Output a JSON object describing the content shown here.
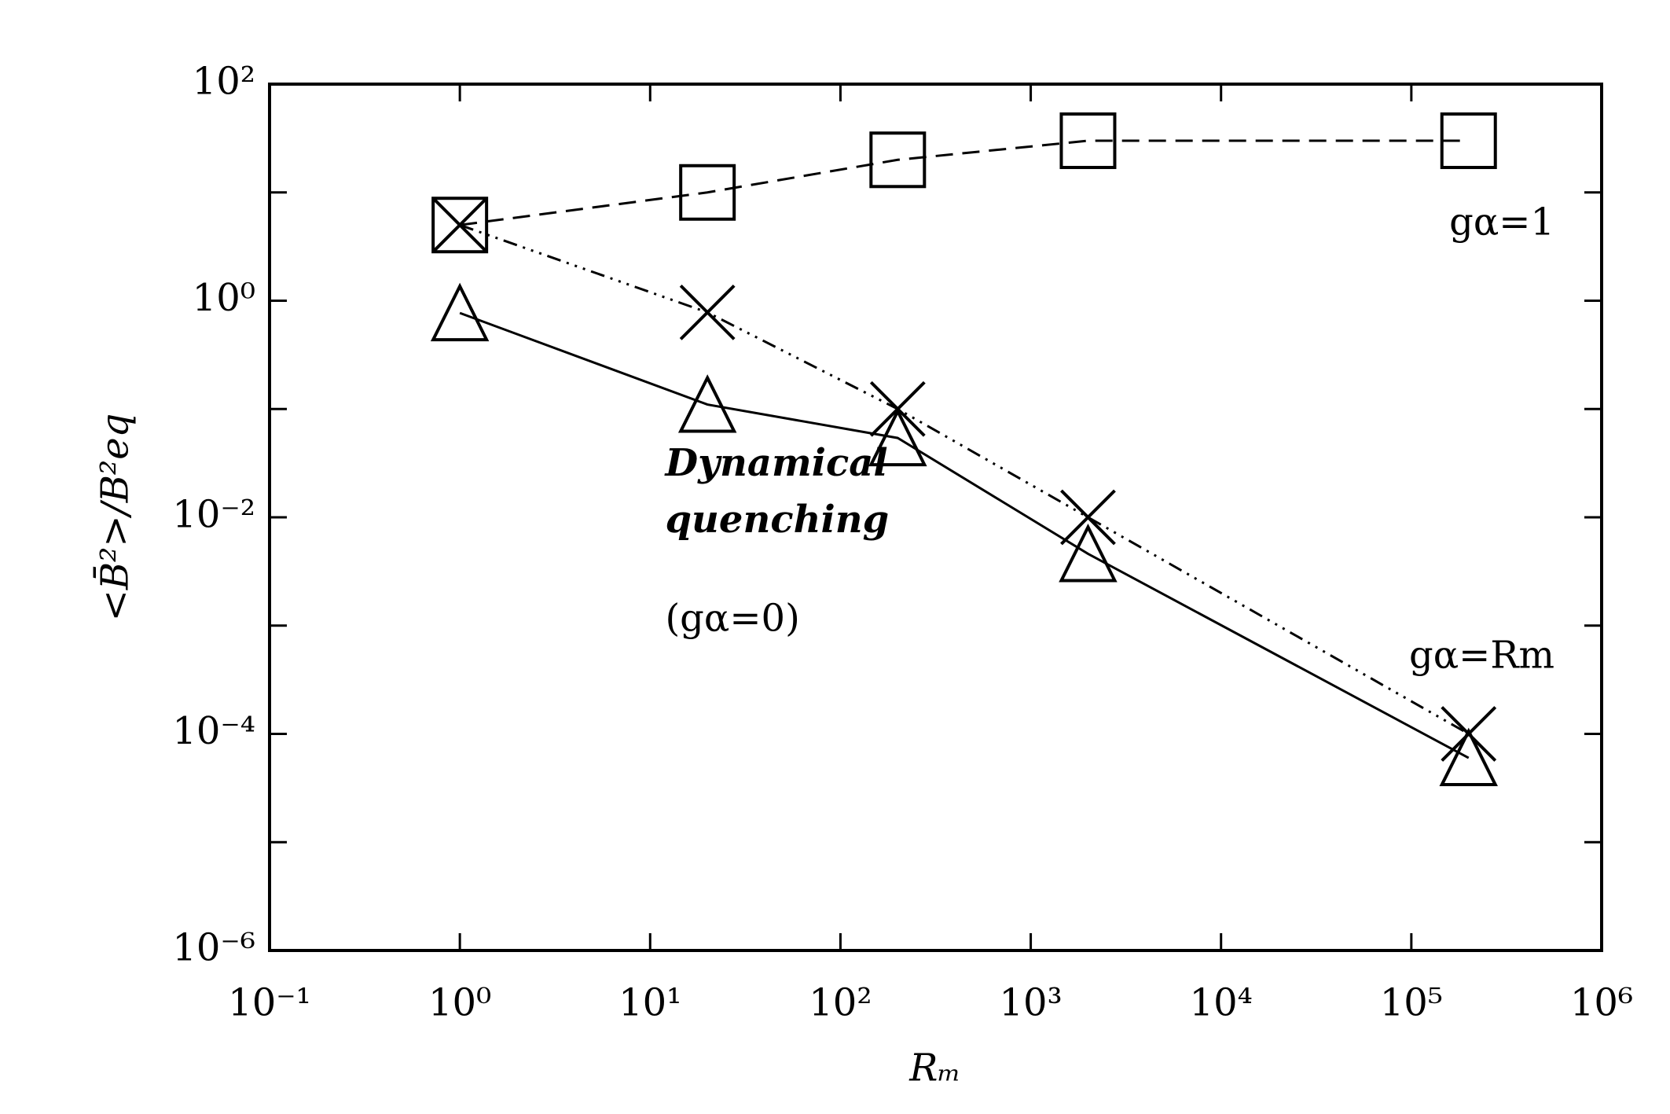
{
  "chart_data": {
    "type": "line",
    "x_label": "Rₘ",
    "y_label": "<B̄²>/B²eq",
    "x": [
      1,
      20,
      200,
      2000,
      200000
    ],
    "series": [
      {
        "marker": "square",
        "dash": "dashed",
        "color": "#000000",
        "values": [
          5,
          10,
          20,
          30,
          30
        ]
      },
      {
        "marker": "cross",
        "dash": "dash-dot",
        "color": "#000000",
        "values": [
          5,
          0.78,
          0.1,
          0.01,
          0.0001
        ]
      },
      {
        "marker": "triangle",
        "dash": "solid",
        "color": "#000000",
        "values": [
          0.77,
          0.11,
          0.054,
          0.0046,
          6e-05
        ]
      }
    ],
    "xlog": true,
    "ylog": true,
    "xlim": [
      0.1,
      1000000
    ],
    "ylim": [
      1e-06,
      100
    ],
    "xticks": [
      {
        "value": 0.1,
        "label": "10⁻¹"
      },
      {
        "value": 1,
        "label": "10⁰"
      },
      {
        "value": 10,
        "label": "10¹"
      },
      {
        "value": 100,
        "label": "10²"
      },
      {
        "value": 1000,
        "label": "10³"
      },
      {
        "value": 10000,
        "label": "10⁴"
      },
      {
        "value": 100000,
        "label": "10⁵"
      },
      {
        "value": 1000000,
        "label": "10⁶"
      }
    ],
    "yticks": [
      {
        "value": 1e-06,
        "label": "10⁻⁶"
      },
      {
        "value": 0.0001,
        "label": "10⁻⁴"
      },
      {
        "value": 0.01,
        "label": "10⁻²"
      },
      {
        "value": 1,
        "label": "10⁰"
      },
      {
        "value": 100,
        "label": "10²"
      }
    ],
    "yminor_ticks": [
      1e-05,
      0.001,
      0.1,
      10
    ],
    "annotations": [
      {
        "text": "gα=1",
        "x": 1000000,
        "y": 5
      },
      {
        "text": "gα=Rm",
        "x": 1000000,
        "y": 0.0005
      },
      {
        "text": "Dynamical",
        "x": 12,
        "y": 0.03,
        "style": "italic"
      },
      {
        "text": "quenching",
        "x": 12,
        "y": 0.009,
        "style": "italic"
      },
      {
        "text": "(gα=0)",
        "x": 12,
        "y": 0.0011
      }
    ]
  }
}
